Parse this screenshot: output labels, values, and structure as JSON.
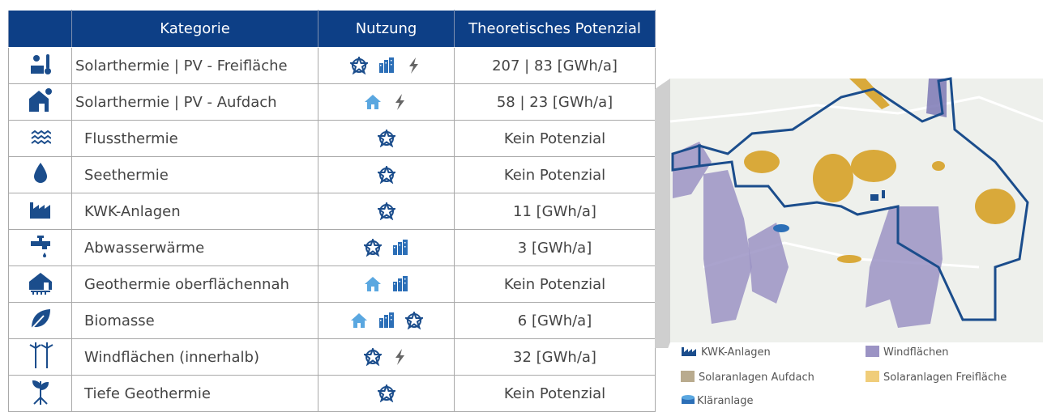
{
  "table": {
    "header": [
      "Kategorie",
      "Nutzung",
      "Theoretisches Potenzial"
    ],
    "rows": [
      [
        "Solarthermie | PV - Freifläche",
        "207 | 83 [GWh/a]"
      ],
      [
        "Solarthermie | PV - Aufdach",
        "58 | 23 [GWh/a]"
      ],
      [
        "Flussthermie",
        "Kein Potenzial"
      ],
      [
        "Seethermie",
        "Kein Potenzial"
      ],
      [
        "KWK-Anlagen",
        "11 [GWh/a]"
      ],
      [
        "Abwasserwärme",
        "3 [GWh/a]"
      ],
      [
        "Geothermie oberflächennah",
        "Kein Potenzial"
      ],
      [
        "Biomasse",
        "6 [GWh/a]"
      ],
      [
        "Windflächen (innerhalb)",
        "32 [GWh/a]"
      ],
      [
        "Tiefe Geothermie",
        "Kein Potenzial"
      ]
    ]
  },
  "legend": [
    "KWK-Anlagen",
    "Windflächen",
    "Solaranlagen Aufdach",
    "Solaranlagen Freifläche",
    "Kläranlage"
  ]
}
